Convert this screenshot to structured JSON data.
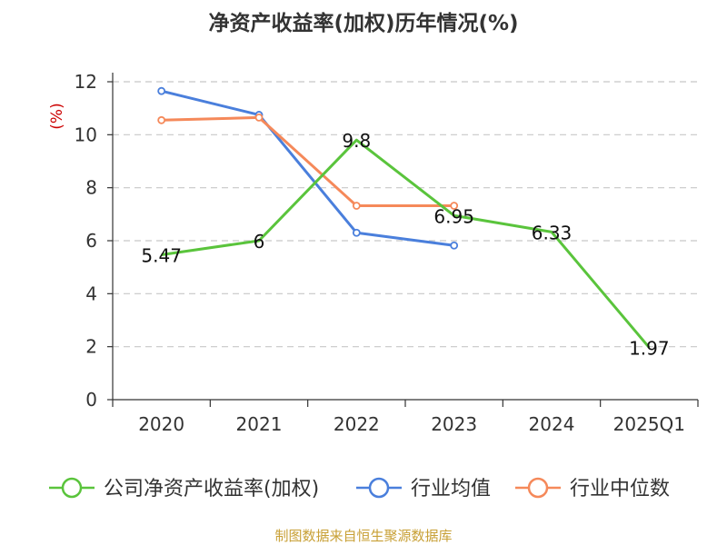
{
  "title": "净资产收益率(加权)历年情况(%)",
  "source": "制图数据来自恒生聚源数据库",
  "chart_data": {
    "type": "line",
    "title": "净资产收益率(加权)历年情况(%)",
    "xlabel": "",
    "ylabel": "(%)",
    "ylim": [
      0,
      12
    ],
    "yticks": [
      0,
      2,
      4,
      6,
      8,
      10,
      12
    ],
    "categories": [
      "2020",
      "2021",
      "2022",
      "2023",
      "2024",
      "2025Q1"
    ],
    "grid": true,
    "legend_position": "bottom",
    "series": [
      {
        "name": "公司净资产收益率(加权)",
        "color": "#5ac43c",
        "values": [
          5.47,
          6,
          9.8,
          6.95,
          6.33,
          1.97
        ],
        "labels": [
          "5.47",
          "6",
          "9.8",
          "6.95",
          "6.33",
          "1.97"
        ]
      },
      {
        "name": "行业均值",
        "color": "#4a7fdc",
        "values": [
          11.65,
          10.75,
          6.3,
          5.82,
          null,
          null
        ]
      },
      {
        "name": "行业中位数",
        "color": "#f5895a",
        "values": [
          10.55,
          10.65,
          7.32,
          7.32,
          null,
          null
        ]
      }
    ]
  }
}
